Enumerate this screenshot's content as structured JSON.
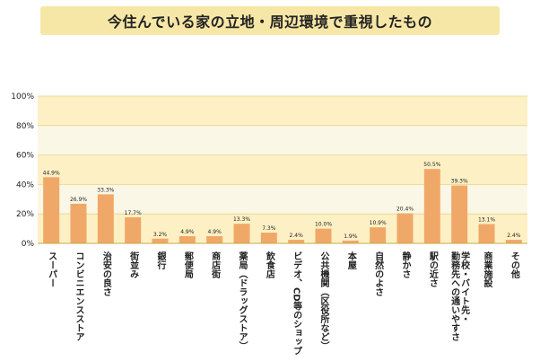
{
  "chart_data": {
    "type": "bar",
    "title": "今住んでいる家の立地・周辺環境で重視したもの",
    "categories": [
      [
        "スーパー"
      ],
      [
        "コンビニエンスストア"
      ],
      [
        "治安の良さ"
      ],
      [
        "街並み"
      ],
      [
        "銀行"
      ],
      [
        "郵便局"
      ],
      [
        "商店街"
      ],
      [
        "薬局（ドラッグストア）"
      ],
      [
        "飲食店"
      ],
      [
        "ビデオ、CD等のショップ"
      ],
      [
        "公共機関（区役所など）"
      ],
      [
        "本屋"
      ],
      [
        "自然のよさ"
      ],
      [
        "静かさ"
      ],
      [
        "駅の近さ"
      ],
      [
        "学校・バイト先・",
        "勤務先への通いやすさ"
      ],
      [
        "商業施設"
      ],
      [
        "その他"
      ]
    ],
    "values": [
      44.9,
      26.9,
      33.3,
      17.7,
      3.2,
      4.9,
      4.9,
      13.3,
      7.3,
      2.4,
      10.0,
      1.9,
      10.9,
      20.4,
      50.5,
      39.3,
      13.1,
      2.4
    ],
    "value_labels": [
      "44.9%",
      "26.9%",
      "33.3%",
      "17.7%",
      "3.2%",
      "4.9%",
      "4.9%",
      "13.3%",
      "7.3%",
      "2.4%",
      "10.0%",
      "1.9%",
      "10.9%",
      "20.4%",
      "50.5%",
      "39.3%",
      "13.1%",
      "2.4%"
    ],
    "ylim": [
      0,
      100
    ],
    "yticks": [
      0,
      20,
      40,
      60,
      80,
      100
    ],
    "ytick_labels": [
      "0%",
      "20%",
      "40%",
      "60%",
      "80%",
      "100%"
    ],
    "bar_color": "#f0a868",
    "band_colors": [
      "#fdf0c4",
      "#fbf7e6"
    ]
  }
}
